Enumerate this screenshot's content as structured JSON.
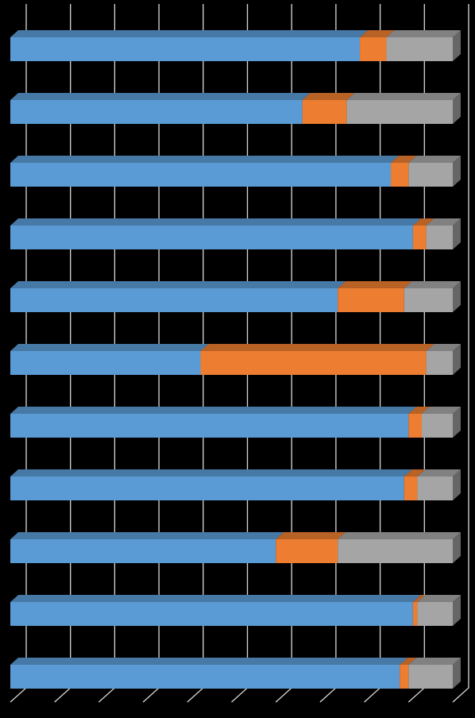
{
  "chart_data": {
    "type": "stacked-bar-3d",
    "categories": [
      null,
      null,
      null,
      null,
      null,
      null,
      null,
      null,
      null,
      null,
      null
    ],
    "series": [
      {
        "color": "#5b9bd5",
        "values": [
          79,
          66,
          86,
          91,
          74,
          43,
          90,
          89,
          60,
          91,
          88
        ]
      },
      {
        "color": "#ed7d31",
        "values": [
          6,
          10,
          4,
          3,
          15,
          51,
          3,
          3,
          14,
          1,
          2
        ]
      },
      {
        "color": "#a5a5a5",
        "values": [
          15,
          24,
          10,
          6,
          11,
          6,
          7,
          8,
          26,
          8,
          10
        ]
      }
    ],
    "xlim": [
      0,
      100
    ],
    "xticks": [
      0,
      10,
      20,
      30,
      40,
      50,
      60,
      70,
      80,
      90,
      100
    ],
    "grid": true,
    "grid_color": "#d9d9d9",
    "background": "#000000"
  }
}
